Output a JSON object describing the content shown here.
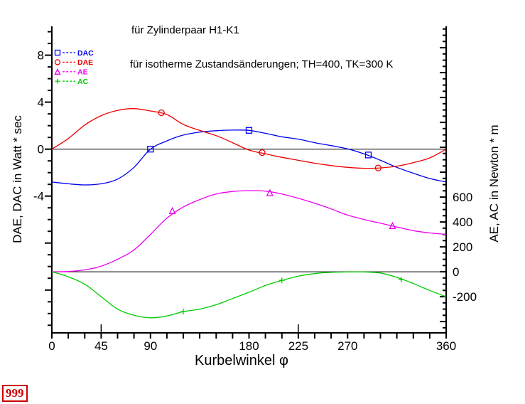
{
  "page": {
    "background": "#ffffff"
  },
  "badge": {
    "text": "999",
    "color": "#cc0000"
  },
  "annotations": {
    "line1": "für Zylinderpaar  H1-K1",
    "line2": "für isotherme Zustandsänderungen; TH=400, TK=300 K"
  },
  "chart_data": {
    "type": "line",
    "title": "",
    "xlabel": "Kurbelwinkel φ",
    "ylabel_left": "DAE, DAC in Watt * sec",
    "ylabel_right": "AE, AC in Newton * m",
    "grid": false,
    "legend_position": "top-left-inside",
    "x_axis": {
      "min": 0,
      "max": 360,
      "minor_step": 15,
      "labeled_ticks": [
        0,
        45,
        90,
        180,
        225,
        270,
        360
      ],
      "inward_ticks": [
        45,
        225
      ]
    },
    "left_axis": {
      "min": -15.65,
      "max": 10.4,
      "major_step": 4,
      "minor_step": 1,
      "labeled_ticks": [
        8,
        4,
        0,
        -4
      ],
      "zero_line": true
    },
    "right_axis": {
      "min": -491,
      "max": 1966,
      "major_step": 200,
      "minor_step": 50,
      "labeled_ticks": [
        600,
        400,
        200,
        0,
        -200
      ],
      "zero_line": true
    },
    "legend": [
      {
        "label": "DAC",
        "color": "#0000ee",
        "marker": "square"
      },
      {
        "label": "DAE",
        "color": "#ee0000",
        "marker": "circle"
      },
      {
        "label": "AE",
        "color": "#ee00ee",
        "marker": "triangle"
      },
      {
        "label": "AC",
        "color": "#00cc00",
        "marker": "plus"
      }
    ],
    "series": [
      {
        "name": "DAC",
        "axis": "left",
        "color": "#0000ee",
        "marker": "square",
        "points": [
          [
            0,
            -2.8
          ],
          [
            15,
            -2.95
          ],
          [
            30,
            -3.05
          ],
          [
            45,
            -2.95
          ],
          [
            60,
            -2.55
          ],
          [
            75,
            -1.55
          ],
          [
            90,
            0
          ],
          [
            105,
            0.7
          ],
          [
            120,
            1.2
          ],
          [
            135,
            1.45
          ],
          [
            150,
            1.57
          ],
          [
            165,
            1.62
          ],
          [
            180,
            1.6
          ],
          [
            195,
            1.35
          ],
          [
            210,
            1.05
          ],
          [
            225,
            0.85
          ],
          [
            240,
            0.55
          ],
          [
            255,
            0.3
          ],
          [
            270,
            0.02
          ],
          [
            285,
            -0.4
          ],
          [
            300,
            -0.95
          ],
          [
            315,
            -1.55
          ],
          [
            330,
            -2.05
          ],
          [
            345,
            -2.5
          ],
          [
            360,
            -2.8
          ]
        ],
        "marker_points": [
          [
            90,
            0
          ],
          [
            180,
            1.6
          ],
          [
            289,
            -0.5
          ]
        ]
      },
      {
        "name": "DAE",
        "axis": "left",
        "color": "#ee0000",
        "marker": "circle",
        "points": [
          [
            0,
            0
          ],
          [
            15,
            0.9
          ],
          [
            30,
            2.05
          ],
          [
            45,
            2.85
          ],
          [
            60,
            3.3
          ],
          [
            75,
            3.45
          ],
          [
            90,
            3.25
          ],
          [
            105,
            2.95
          ],
          [
            120,
            2.1
          ],
          [
            135,
            1.6
          ],
          [
            150,
            1.15
          ],
          [
            165,
            0.55
          ],
          [
            180,
            -0.08
          ],
          [
            195,
            -0.4
          ],
          [
            210,
            -0.7
          ],
          [
            225,
            -0.95
          ],
          [
            240,
            -1.2
          ],
          [
            255,
            -1.4
          ],
          [
            270,
            -1.55
          ],
          [
            285,
            -1.63
          ],
          [
            300,
            -1.6
          ],
          [
            315,
            -1.45
          ],
          [
            330,
            -1.15
          ],
          [
            345,
            -0.75
          ],
          [
            360,
            0
          ]
        ],
        "marker_points": [
          [
            100,
            3.1
          ],
          [
            192,
            -0.3
          ],
          [
            298,
            -1.6
          ]
        ]
      },
      {
        "name": "AE",
        "axis": "right",
        "color": "#ee00ee",
        "marker": "triangle",
        "points": [
          [
            0,
            0
          ],
          [
            15,
            2
          ],
          [
            30,
            15
          ],
          [
            45,
            45
          ],
          [
            60,
            100
          ],
          [
            75,
            175
          ],
          [
            90,
            300
          ],
          [
            105,
            430
          ],
          [
            120,
            520
          ],
          [
            135,
            580
          ],
          [
            150,
            625
          ],
          [
            165,
            645
          ],
          [
            180,
            652
          ],
          [
            195,
            648
          ],
          [
            210,
            625
          ],
          [
            225,
            590
          ],
          [
            240,
            550
          ],
          [
            255,
            505
          ],
          [
            270,
            455
          ],
          [
            285,
            420
          ],
          [
            300,
            390
          ],
          [
            315,
            360
          ],
          [
            330,
            330
          ],
          [
            345,
            312
          ],
          [
            360,
            300
          ]
        ],
        "marker_points": [
          [
            110,
            490
          ],
          [
            199,
            634
          ],
          [
            311,
            370
          ]
        ]
      },
      {
        "name": "AC",
        "axis": "right",
        "color": "#00cc00",
        "marker": "plus",
        "points": [
          [
            0,
            0
          ],
          [
            15,
            -40
          ],
          [
            30,
            -100
          ],
          [
            45,
            -200
          ],
          [
            60,
            -300
          ],
          [
            75,
            -350
          ],
          [
            90,
            -370
          ],
          [
            105,
            -355
          ],
          [
            120,
            -320
          ],
          [
            135,
            -300
          ],
          [
            150,
            -265
          ],
          [
            165,
            -215
          ],
          [
            180,
            -165
          ],
          [
            195,
            -110
          ],
          [
            210,
            -70
          ],
          [
            225,
            -35
          ],
          [
            240,
            -15
          ],
          [
            255,
            -5
          ],
          [
            270,
            -2
          ],
          [
            285,
            -2
          ],
          [
            300,
            -10
          ],
          [
            315,
            -45
          ],
          [
            330,
            -95
          ],
          [
            345,
            -150
          ],
          [
            360,
            -200
          ]
        ],
        "marker_points": [
          [
            120,
            -320
          ],
          [
            210,
            -69
          ],
          [
            319,
            -63
          ]
        ]
      }
    ]
  }
}
